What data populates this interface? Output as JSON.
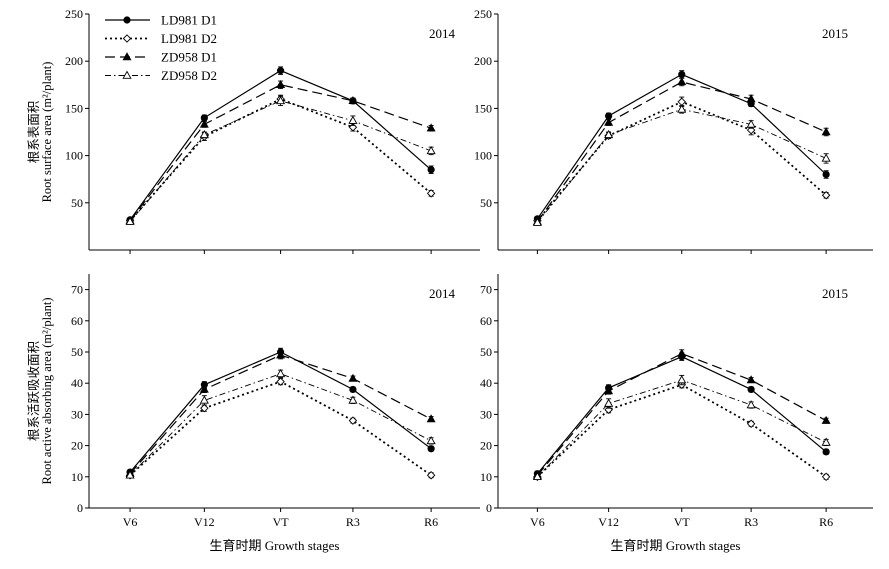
{
  "legend": [
    {
      "name": "LD981 D1",
      "key": "ld_d1"
    },
    {
      "name": "LD981 D2",
      "key": "ld_d2"
    },
    {
      "name": "ZD958 D1",
      "key": "zd_d1"
    },
    {
      "name": "ZD958 D2",
      "key": "zd_d2"
    }
  ],
  "styles": {
    "ld_d1": {
      "dash": "",
      "width": 1.2,
      "marker": "circle-filled",
      "color": "#000000"
    },
    "ld_d2": {
      "dash": "2,3",
      "width": 1.8,
      "marker": "diamond-open",
      "color": "#000000"
    },
    "zd_d1": {
      "dash": "10,5",
      "width": 1.2,
      "marker": "triangle-filled",
      "color": "#000000"
    },
    "zd_d2": {
      "dash": "6,3,1.5,3",
      "width": 0.9,
      "marker": "triangle-open",
      "color": "#000000"
    }
  },
  "chart_data": [
    {
      "type": "line",
      "row": 0,
      "col": 0,
      "year_label": "2014",
      "ylabel_cn": "根系表面积",
      "ylabel_en": "Root surface  area (m²/plant)",
      "xlabel": "",
      "ylim": [
        0,
        250
      ],
      "yticks": [
        50,
        100,
        150,
        200,
        250
      ],
      "categories": [
        "V6",
        "V12",
        "VT",
        "R3",
        "R6"
      ],
      "show_xticks": false,
      "series": [
        {
          "key": "ld_d1",
          "values": [
            32,
            140,
            190,
            158,
            85
          ],
          "err": [
            2,
            3,
            4,
            3,
            4
          ]
        },
        {
          "key": "ld_d2",
          "values": [
            31,
            120,
            160,
            130,
            60
          ],
          "err": [
            2,
            4,
            4,
            4,
            3
          ]
        },
        {
          "key": "zd_d1",
          "values": [
            31,
            133,
            175,
            158,
            129
          ],
          "err": [
            2,
            3,
            4,
            3,
            3
          ]
        },
        {
          "key": "zd_d2",
          "values": [
            30,
            122,
            158,
            137,
            105
          ],
          "err": [
            2,
            3,
            5,
            5,
            4
          ]
        }
      ]
    },
    {
      "type": "line",
      "row": 0,
      "col": 1,
      "year_label": "2015",
      "ylabel_cn": "",
      "ylabel_en": "",
      "xlabel": "",
      "ylim": [
        0,
        250
      ],
      "yticks": [
        50,
        100,
        150,
        200,
        250
      ],
      "categories": [
        "V6",
        "V12",
        "VT",
        "R3",
        "R6"
      ],
      "show_xticks": false,
      "series": [
        {
          "key": "ld_d1",
          "values": [
            33,
            142,
            186,
            155,
            80
          ],
          "err": [
            2,
            3,
            4,
            3,
            4
          ]
        },
        {
          "key": "ld_d2",
          "values": [
            31,
            121,
            157,
            127,
            58
          ],
          "err": [
            2,
            3,
            5,
            5,
            3
          ]
        },
        {
          "key": "zd_d1",
          "values": [
            30,
            135,
            178,
            160,
            125
          ],
          "err": [
            2,
            3,
            4,
            4,
            4
          ]
        },
        {
          "key": "zd_d2",
          "values": [
            29,
            122,
            149,
            133,
            97
          ],
          "err": [
            2,
            3,
            4,
            4,
            5
          ]
        }
      ]
    },
    {
      "type": "line",
      "row": 1,
      "col": 0,
      "year_label": "2014",
      "ylabel_cn": "根系活跃吸收面积",
      "ylabel_en": "Root active absorbing area (m²/plant)",
      "xlabel": "生育时期 Growth stages",
      "ylim": [
        0,
        75
      ],
      "yticks": [
        0,
        10,
        20,
        30,
        40,
        50,
        60,
        70
      ],
      "categories": [
        "V6",
        "V12",
        "VT",
        "R3",
        "R6"
      ],
      "show_xticks": true,
      "series": [
        {
          "key": "ld_d1",
          "values": [
            11.5,
            39.5,
            50,
            38,
            19
          ],
          "err": [
            0.8,
            1.0,
            1.2,
            0.8,
            0.8
          ]
        },
        {
          "key": "ld_d2",
          "values": [
            10.5,
            32,
            40.5,
            28,
            10.5
          ],
          "err": [
            0.8,
            1.0,
            1.0,
            0.8,
            0.8
          ]
        },
        {
          "key": "zd_d1",
          "values": [
            11,
            38,
            49,
            41.5,
            28.5
          ],
          "err": [
            0.8,
            1.0,
            1.2,
            0.8,
            0.8
          ]
        },
        {
          "key": "zd_d2",
          "values": [
            10.5,
            34.5,
            43,
            34.5,
            21.5
          ],
          "err": [
            0.8,
            1.5,
            1.2,
            1.0,
            1.0
          ]
        }
      ]
    },
    {
      "type": "line",
      "row": 1,
      "col": 1,
      "year_label": "2015",
      "ylabel_cn": "",
      "ylabel_en": "",
      "xlabel": "生育时期 Growth stages",
      "ylim": [
        0,
        75
      ],
      "yticks": [
        0,
        10,
        20,
        30,
        40,
        50,
        60,
        70
      ],
      "categories": [
        "V6",
        "V12",
        "VT",
        "R3",
        "R6"
      ],
      "show_xticks": true,
      "series": [
        {
          "key": "ld_d1",
          "values": [
            11,
            38.5,
            48.5,
            38,
            18
          ],
          "err": [
            0.8,
            1.0,
            1.2,
            0.8,
            0.8
          ]
        },
        {
          "key": "ld_d2",
          "values": [
            10,
            31.5,
            39.5,
            27,
            10
          ],
          "err": [
            0.8,
            1.0,
            1.0,
            0.8,
            0.8
          ]
        },
        {
          "key": "zd_d1",
          "values": [
            10.5,
            37.5,
            49.5,
            41,
            28
          ],
          "err": [
            0.8,
            1.0,
            1.2,
            0.8,
            0.8
          ]
        },
        {
          "key": "zd_d2",
          "values": [
            10,
            33.5,
            41,
            33,
            21
          ],
          "err": [
            0.8,
            1.5,
            1.5,
            1.0,
            1.0
          ]
        }
      ]
    }
  ]
}
